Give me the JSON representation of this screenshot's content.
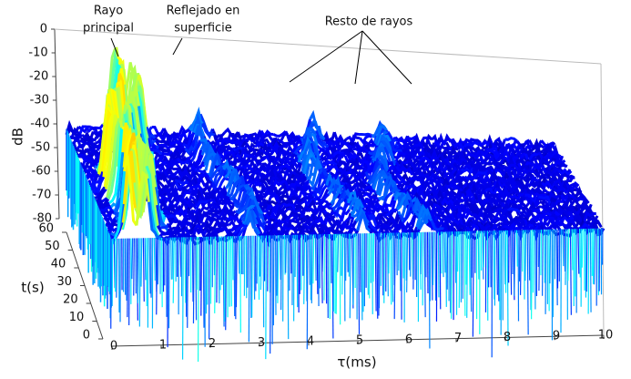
{
  "chart_data": {
    "type": "surface",
    "xlabel": "τ(ms)",
    "ylabel": "t(s)",
    "zlabel": "dB",
    "xlim": [
      0,
      10
    ],
    "xticks": [
      0,
      1,
      2,
      3,
      4,
      5,
      6,
      7,
      8,
      9,
      10
    ],
    "ylim": [
      0,
      60
    ],
    "yticks": [
      0,
      10,
      20,
      30,
      40,
      50,
      60
    ],
    "zlim": [
      -80,
      0
    ],
    "zticks": [
      0,
      -10,
      -20,
      -30,
      -40,
      -50,
      -60,
      -70,
      -80
    ],
    "annotations": [
      {
        "lines": [
          "Rayo",
          "principal"
        ]
      },
      {
        "lines": [
          "Reflejado en",
          "superficie"
        ]
      },
      {
        "lines": [
          "Resto de rayos"
        ]
      }
    ]
  }
}
